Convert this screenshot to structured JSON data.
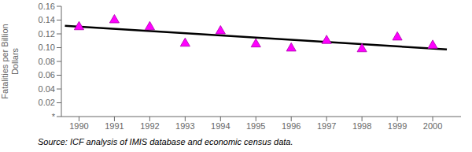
{
  "chart_data": {
    "type": "scatter",
    "ylabel": "Fatalities per Billion\nDollars",
    "annotation": "Source: ICF analysis of IMIS database and economic census data.",
    "series": [
      {
        "type": "line",
        "color": "#000000",
        "x": [
          1989.6,
          2000.4
        ],
        "values": [
          0.131629,
          0.097462
        ]
      },
      {
        "type": "scatter",
        "color": "#FF00FF",
        "marker": "triangle-up",
        "x": [
          1990,
          1991,
          1992,
          1993,
          1994,
          1995,
          1996,
          1997,
          1998,
          1999,
          2000
        ],
        "values": [
          0.13,
          0.14,
          0.13,
          0.106,
          0.124,
          0.105,
          0.099,
          0.11,
          0.098,
          0.115,
          0.103
        ]
      }
    ],
    "xlim": [
      1989.5,
      2000.8
    ],
    "xticks": [
      1990,
      1991,
      1992,
      1993,
      1994,
      1995,
      1996,
      1997,
      1998,
      1999,
      2000
    ],
    "ylim": [
      0,
      0.16
    ],
    "yticks": [
      {
        "value": 0,
        "label": "*"
      },
      0.02,
      0.04,
      0.06,
      0.08,
      {
        "value": 0.1,
        "label": "0.10"
      },
      0.12,
      0.14,
      0.16
    ],
    "grid": false
  }
}
